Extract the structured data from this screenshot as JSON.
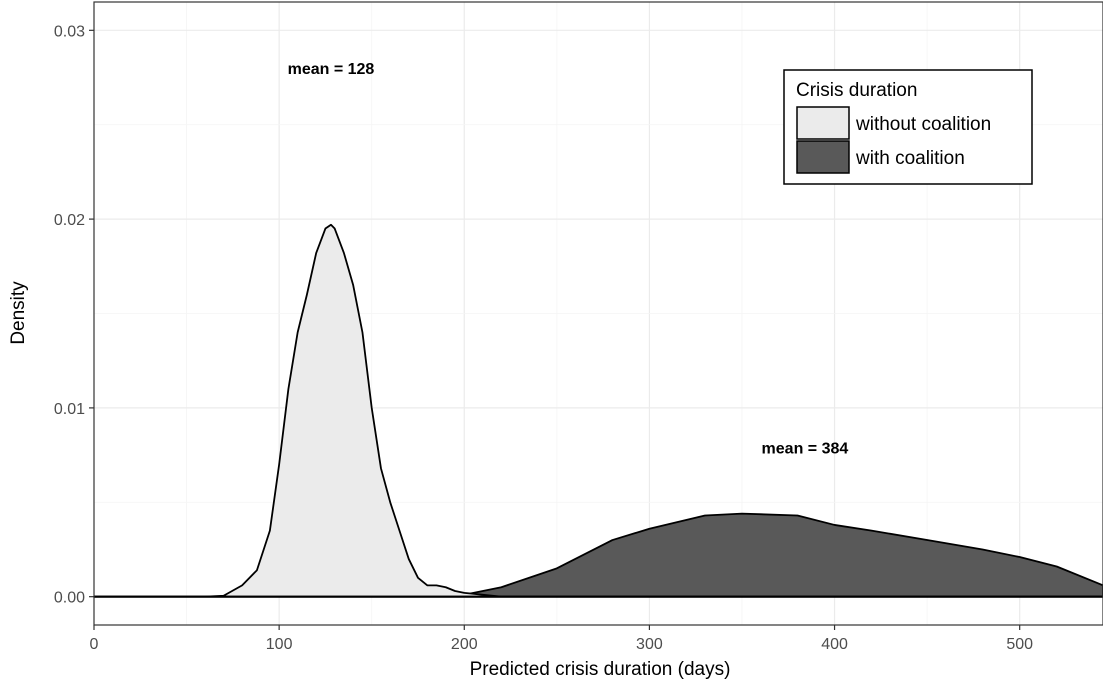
{
  "chart_data": {
    "type": "area",
    "title": "",
    "xlabel": "Predicted crisis duration (days)",
    "ylabel": "Density",
    "xlim": [
      0,
      545
    ],
    "ylim": [
      -0.0015,
      0.0315
    ],
    "x_ticks": [
      "0",
      "100",
      "200",
      "300",
      "400",
      "500"
    ],
    "y_ticks": [
      "0.00",
      "0.01",
      "0.02",
      "0.03"
    ],
    "grid": true,
    "legend": {
      "title": "Crisis duration",
      "position": "top-right",
      "entries": [
        "without coalition",
        "with coalition"
      ]
    },
    "series": [
      {
        "name": "with coalition",
        "color": "#595959",
        "x": [
          0,
          150,
          180,
          200,
          220,
          250,
          280,
          300,
          330,
          350,
          380,
          400,
          420,
          450,
          480,
          500,
          520,
          545
        ],
        "y": [
          0,
          0,
          5e-05,
          0.0001,
          0.0005,
          0.0015,
          0.003,
          0.0036,
          0.0043,
          0.0044,
          0.0043,
          0.0038,
          0.0035,
          0.003,
          0.0025,
          0.0021,
          0.0016,
          0.0006
        ]
      },
      {
        "name": "without coalition",
        "color": "#ebebeb",
        "x": [
          0,
          60,
          70,
          80,
          88,
          95,
          100,
          105,
          110,
          115,
          120,
          125,
          128,
          130,
          135,
          140,
          145,
          150,
          155,
          160,
          165,
          170,
          175,
          180,
          185,
          190,
          195,
          200,
          210,
          220,
          545
        ],
        "y": [
          0,
          0,
          5e-05,
          0.0006,
          0.0014,
          0.0035,
          0.007,
          0.011,
          0.014,
          0.016,
          0.0182,
          0.0195,
          0.0197,
          0.0195,
          0.0182,
          0.0165,
          0.014,
          0.01,
          0.0068,
          0.005,
          0.0035,
          0.002,
          0.001,
          0.0006,
          0.0006,
          0.0005,
          0.0003,
          0.0002,
          0.0001,
          0,
          0
        ]
      }
    ],
    "annotations": [
      {
        "text": "mean = 128",
        "x": 128,
        "y": 0.028
      },
      {
        "text": "mean = 384",
        "x": 384,
        "y": 0.0079
      }
    ]
  }
}
